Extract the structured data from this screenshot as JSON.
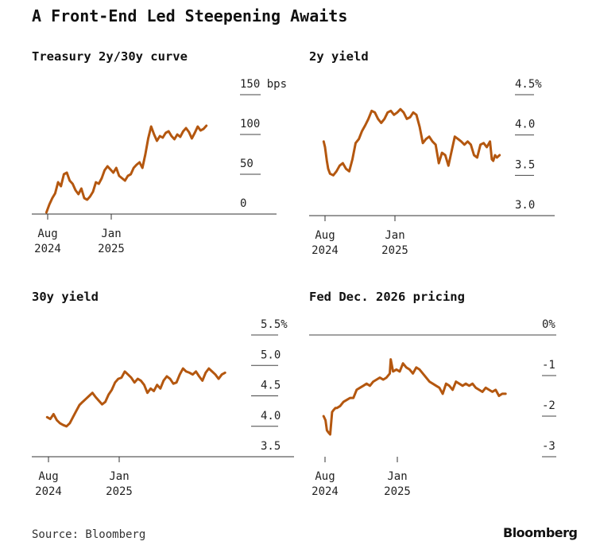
{
  "title": "A Front-End Led Steepening Awaits",
  "source": "Source: Bloomberg",
  "brand": "Bloomberg",
  "colors": {
    "series": "#b4570f"
  },
  "chart_data": [
    {
      "type": "line",
      "title": "Treasury 2y/30y curve",
      "yunit": "bps",
      "ylim": [
        0,
        150
      ],
      "y_ticks": [
        "150 bps",
        "100",
        "50",
        "0"
      ],
      "x_ticks": [
        [
          "Aug",
          "2024"
        ],
        [
          "Jan",
          "2025"
        ]
      ],
      "x_tick_positions": [
        "2024-08-01",
        "2025-01-01"
      ],
      "series": [
        {
          "values": [
            [
              "2024-07-29",
              2
            ],
            [
              "2024-08-05",
              12
            ],
            [
              "2024-08-12",
              20
            ],
            [
              "2024-08-19",
              26
            ],
            [
              "2024-08-26",
              40
            ],
            [
              "2024-09-02",
              35
            ],
            [
              "2024-09-09",
              50
            ],
            [
              "2024-09-16",
              52
            ],
            [
              "2024-09-23",
              42
            ],
            [
              "2024-09-30",
              38
            ],
            [
              "2024-10-07",
              30
            ],
            [
              "2024-10-14",
              25
            ],
            [
              "2024-10-21",
              32
            ],
            [
              "2024-10-28",
              20
            ],
            [
              "2024-11-04",
              18
            ],
            [
              "2024-11-11",
              22
            ],
            [
              "2024-11-18",
              28
            ],
            [
              "2024-11-25",
              40
            ],
            [
              "2024-12-02",
              38
            ],
            [
              "2024-12-09",
              45
            ],
            [
              "2024-12-16",
              55
            ],
            [
              "2024-12-23",
              60
            ],
            [
              "2024-12-30",
              56
            ],
            [
              "2025-01-06",
              52
            ],
            [
              "2025-01-13",
              58
            ],
            [
              "2025-01-20",
              48
            ],
            [
              "2025-01-27",
              45
            ],
            [
              "2025-02-03",
              42
            ],
            [
              "2025-02-10",
              48
            ],
            [
              "2025-02-17",
              50
            ],
            [
              "2025-02-24",
              58
            ],
            [
              "2025-03-03",
              62
            ],
            [
              "2025-03-10",
              65
            ],
            [
              "2025-03-17",
              58
            ],
            [
              "2025-03-24",
              75
            ],
            [
              "2025-03-31",
              95
            ],
            [
              "2025-04-07",
              110
            ],
            [
              "2025-04-14",
              100
            ],
            [
              "2025-04-21",
              92
            ],
            [
              "2025-04-28",
              98
            ],
            [
              "2025-05-05",
              96
            ],
            [
              "2025-05-12",
              102
            ],
            [
              "2025-05-19",
              104
            ],
            [
              "2025-05-26",
              98
            ],
            [
              "2025-06-02",
              94
            ],
            [
              "2025-06-09",
              100
            ],
            [
              "2025-06-16",
              97
            ],
            [
              "2025-06-23",
              104
            ],
            [
              "2025-06-30",
              108
            ],
            [
              "2025-07-07",
              103
            ],
            [
              "2025-07-14",
              95
            ],
            [
              "2025-07-21",
              102
            ],
            [
              "2025-07-28",
              110
            ],
            [
              "2025-08-04",
              105
            ],
            [
              "2025-08-11",
              107
            ],
            [
              "2025-08-18",
              111
            ]
          ]
        }
      ]
    },
    {
      "type": "line",
      "title": "2y yield",
      "yunit": "%",
      "ylim": [
        3.0,
        4.5
      ],
      "y_ticks": [
        "4.5%",
        "4.0",
        "3.5",
        "3.0"
      ],
      "x_ticks": [
        [
          "Aug",
          "2024"
        ],
        [
          "Jan",
          "2025"
        ]
      ],
      "x_tick_positions": [
        "2024-08-01",
        "2025-01-01"
      ],
      "series": [
        {
          "values": [
            [
              "2024-07-29",
              3.92
            ],
            [
              "2024-08-01",
              3.85
            ],
            [
              "2024-08-05",
              3.68
            ],
            [
              "2024-08-08",
              3.58
            ],
            [
              "2024-08-12",
              3.52
            ],
            [
              "2024-08-19",
              3.5
            ],
            [
              "2024-08-26",
              3.55
            ],
            [
              "2024-09-02",
              3.62
            ],
            [
              "2024-09-09",
              3.65
            ],
            [
              "2024-09-16",
              3.58
            ],
            [
              "2024-09-23",
              3.55
            ],
            [
              "2024-09-30",
              3.7
            ],
            [
              "2024-10-07",
              3.9
            ],
            [
              "2024-10-14",
              3.95
            ],
            [
              "2024-10-21",
              4.05
            ],
            [
              "2024-10-28",
              4.12
            ],
            [
              "2024-11-04",
              4.2
            ],
            [
              "2024-11-11",
              4.3
            ],
            [
              "2024-11-18",
              4.28
            ],
            [
              "2024-11-25",
              4.2
            ],
            [
              "2024-12-02",
              4.15
            ],
            [
              "2024-12-09",
              4.2
            ],
            [
              "2024-12-16",
              4.28
            ],
            [
              "2024-12-23",
              4.3
            ],
            [
              "2024-12-30",
              4.25
            ],
            [
              "2025-01-06",
              4.28
            ],
            [
              "2025-01-13",
              4.32
            ],
            [
              "2025-01-20",
              4.28
            ],
            [
              "2025-01-27",
              4.2
            ],
            [
              "2025-02-03",
              4.22
            ],
            [
              "2025-02-10",
              4.28
            ],
            [
              "2025-02-17",
              4.25
            ],
            [
              "2025-02-24",
              4.1
            ],
            [
              "2025-03-03",
              3.9
            ],
            [
              "2025-03-10",
              3.95
            ],
            [
              "2025-03-17",
              3.98
            ],
            [
              "2025-03-24",
              3.92
            ],
            [
              "2025-03-31",
              3.88
            ],
            [
              "2025-04-07",
              3.65
            ],
            [
              "2025-04-14",
              3.78
            ],
            [
              "2025-04-21",
              3.75
            ],
            [
              "2025-04-28",
              3.62
            ],
            [
              "2025-05-05",
              3.8
            ],
            [
              "2025-05-12",
              3.98
            ],
            [
              "2025-05-19",
              3.95
            ],
            [
              "2025-05-26",
              3.92
            ],
            [
              "2025-06-02",
              3.88
            ],
            [
              "2025-06-09",
              3.92
            ],
            [
              "2025-06-16",
              3.88
            ],
            [
              "2025-06-23",
              3.75
            ],
            [
              "2025-06-30",
              3.72
            ],
            [
              "2025-07-07",
              3.88
            ],
            [
              "2025-07-14",
              3.9
            ],
            [
              "2025-07-21",
              3.85
            ],
            [
              "2025-07-28",
              3.92
            ],
            [
              "2025-08-01",
              3.7
            ],
            [
              "2025-08-04",
              3.68
            ],
            [
              "2025-08-08",
              3.75
            ],
            [
              "2025-08-12",
              3.72
            ],
            [
              "2025-08-18",
              3.75
            ]
          ]
        }
      ]
    },
    {
      "type": "line",
      "title": "30y yield",
      "yunit": "%",
      "ylim": [
        3.5,
        5.5
      ],
      "y_ticks": [
        "5.5%",
        "5.0",
        "4.5",
        "4.0",
        "3.5"
      ],
      "x_ticks": [
        [
          "Aug",
          "2024"
        ],
        [
          "Jan",
          "2025"
        ]
      ],
      "x_tick_positions": [
        "2024-08-01",
        "2025-01-01"
      ],
      "series": [
        {
          "values": [
            [
              "2024-07-29",
              4.15
            ],
            [
              "2024-08-05",
              4.12
            ],
            [
              "2024-08-12",
              4.2
            ],
            [
              "2024-08-19",
              4.1
            ],
            [
              "2024-08-26",
              4.05
            ],
            [
              "2024-09-02",
              4.02
            ],
            [
              "2024-09-09",
              4.0
            ],
            [
              "2024-09-16",
              4.05
            ],
            [
              "2024-09-23",
              4.15
            ],
            [
              "2024-09-30",
              4.25
            ],
            [
              "2024-10-07",
              4.35
            ],
            [
              "2024-10-14",
              4.4
            ],
            [
              "2024-10-21",
              4.45
            ],
            [
              "2024-10-28",
              4.5
            ],
            [
              "2024-11-04",
              4.55
            ],
            [
              "2024-11-11",
              4.48
            ],
            [
              "2024-11-18",
              4.42
            ],
            [
              "2024-11-25",
              4.36
            ],
            [
              "2024-12-02",
              4.4
            ],
            [
              "2024-12-09",
              4.52
            ],
            [
              "2024-12-16",
              4.6
            ],
            [
              "2024-12-23",
              4.72
            ],
            [
              "2024-12-30",
              4.78
            ],
            [
              "2025-01-06",
              4.8
            ],
            [
              "2025-01-13",
              4.9
            ],
            [
              "2025-01-20",
              4.85
            ],
            [
              "2025-01-27",
              4.8
            ],
            [
              "2025-02-03",
              4.72
            ],
            [
              "2025-02-10",
              4.78
            ],
            [
              "2025-02-17",
              4.75
            ],
            [
              "2025-02-24",
              4.68
            ],
            [
              "2025-03-03",
              4.55
            ],
            [
              "2025-03-10",
              4.62
            ],
            [
              "2025-03-17",
              4.58
            ],
            [
              "2025-03-24",
              4.68
            ],
            [
              "2025-03-31",
              4.62
            ],
            [
              "2025-04-07",
              4.75
            ],
            [
              "2025-04-14",
              4.82
            ],
            [
              "2025-04-21",
              4.78
            ],
            [
              "2025-04-28",
              4.7
            ],
            [
              "2025-05-05",
              4.72
            ],
            [
              "2025-05-12",
              4.85
            ],
            [
              "2025-05-19",
              4.95
            ],
            [
              "2025-05-26",
              4.9
            ],
            [
              "2025-06-02",
              4.88
            ],
            [
              "2025-06-09",
              4.85
            ],
            [
              "2025-06-16",
              4.9
            ],
            [
              "2025-06-23",
              4.82
            ],
            [
              "2025-06-30",
              4.75
            ],
            [
              "2025-07-07",
              4.88
            ],
            [
              "2025-07-14",
              4.95
            ],
            [
              "2025-07-21",
              4.9
            ],
            [
              "2025-07-28",
              4.85
            ],
            [
              "2025-08-04",
              4.78
            ],
            [
              "2025-08-11",
              4.85
            ],
            [
              "2025-08-18",
              4.88
            ]
          ]
        }
      ]
    },
    {
      "type": "line",
      "title": "Fed Dec. 2026 pricing",
      "yunit": "%",
      "ylim": [
        -3,
        0
      ],
      "y_ticks": [
        "0%",
        "-1",
        "-2",
        "-3"
      ],
      "x_ticks": [
        [
          "Aug",
          "2024"
        ],
        [
          "Jan",
          "2025"
        ]
      ],
      "x_tick_positions": [
        "2024-08-01",
        "2025-01-01"
      ],
      "series": [
        {
          "values": [
            [
              "2024-07-29",
              -2.0
            ],
            [
              "2024-08-02",
              -2.1
            ],
            [
              "2024-08-05",
              -2.35
            ],
            [
              "2024-08-08",
              -2.4
            ],
            [
              "2024-08-12",
              -2.45
            ],
            [
              "2024-08-16",
              -1.9
            ],
            [
              "2024-08-19",
              -1.85
            ],
            [
              "2024-08-23",
              -1.8
            ],
            [
              "2024-08-26",
              -1.8
            ],
            [
              "2024-09-02",
              -1.75
            ],
            [
              "2024-09-09",
              -1.65
            ],
            [
              "2024-09-16",
              -1.6
            ],
            [
              "2024-09-23",
              -1.55
            ],
            [
              "2024-09-30",
              -1.55
            ],
            [
              "2024-10-07",
              -1.35
            ],
            [
              "2024-10-14",
              -1.3
            ],
            [
              "2024-10-21",
              -1.25
            ],
            [
              "2024-10-28",
              -1.2
            ],
            [
              "2024-11-04",
              -1.25
            ],
            [
              "2024-11-11",
              -1.15
            ],
            [
              "2024-11-18",
              -1.1
            ],
            [
              "2024-11-25",
              -1.05
            ],
            [
              "2024-12-02",
              -1.1
            ],
            [
              "2024-12-09",
              -1.05
            ],
            [
              "2024-12-16",
              -0.95
            ],
            [
              "2024-12-18",
              -0.6
            ],
            [
              "2024-12-23",
              -0.9
            ],
            [
              "2024-12-30",
              -0.85
            ],
            [
              "2025-01-06",
              -0.9
            ],
            [
              "2025-01-13",
              -0.7
            ],
            [
              "2025-01-20",
              -0.8
            ],
            [
              "2025-01-27",
              -0.85
            ],
            [
              "2025-02-03",
              -0.95
            ],
            [
              "2025-02-10",
              -0.8
            ],
            [
              "2025-02-17",
              -0.85
            ],
            [
              "2025-02-24",
              -0.95
            ],
            [
              "2025-03-03",
              -1.05
            ],
            [
              "2025-03-10",
              -1.15
            ],
            [
              "2025-03-17",
              -1.2
            ],
            [
              "2025-03-24",
              -1.25
            ],
            [
              "2025-03-31",
              -1.3
            ],
            [
              "2025-04-07",
              -1.45
            ],
            [
              "2025-04-14",
              -1.2
            ],
            [
              "2025-04-21",
              -1.25
            ],
            [
              "2025-04-28",
              -1.35
            ],
            [
              "2025-05-05",
              -1.15
            ],
            [
              "2025-05-12",
              -1.2
            ],
            [
              "2025-05-19",
              -1.25
            ],
            [
              "2025-05-26",
              -1.2
            ],
            [
              "2025-06-02",
              -1.25
            ],
            [
              "2025-06-09",
              -1.2
            ],
            [
              "2025-06-16",
              -1.3
            ],
            [
              "2025-06-23",
              -1.35
            ],
            [
              "2025-06-30",
              -1.4
            ],
            [
              "2025-07-07",
              -1.3
            ],
            [
              "2025-07-14",
              -1.35
            ],
            [
              "2025-07-21",
              -1.4
            ],
            [
              "2025-07-28",
              -1.35
            ],
            [
              "2025-08-04",
              -1.5
            ],
            [
              "2025-08-11",
              -1.45
            ],
            [
              "2025-08-18",
              -1.45
            ]
          ]
        }
      ]
    }
  ]
}
